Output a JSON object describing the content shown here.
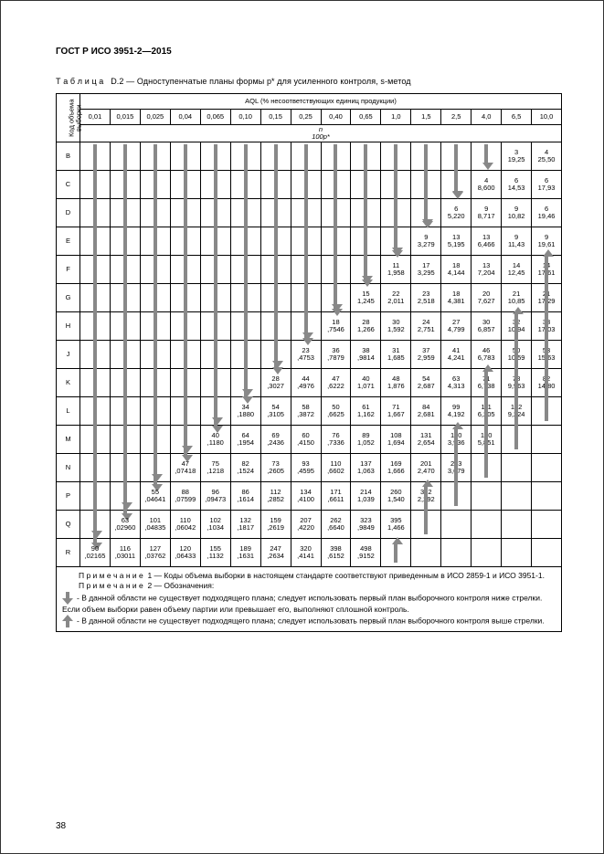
{
  "doc": {
    "standard": "ГОСТ Р ИСО 3951-2—2015",
    "caption_prefix": "Т а б л и ц а   D.2 — ",
    "caption": "Одноступенчатые планы формы p* для усиленного контроля, s-метод",
    "page_number": "38"
  },
  "table": {
    "rowhead_label": "Код объема\nвыборки",
    "aql_header": "AQL (% несоответствующих единиц продукции)",
    "p_header": "n\n100p*",
    "aql_cols": [
      "0,01",
      "0,015",
      "0,025",
      "0,04",
      "0,065",
      "0,10",
      "0,15",
      "0,25",
      "0,40",
      "0,65",
      "1,0",
      "1,5",
      "2,5",
      "4,0",
      "6,5",
      "10,0"
    ],
    "rows": [
      {
        "code": "B",
        "cells": [
          {
            "arrow": "down",
            "span": 14
          },
          {
            "arrow": "down",
            "span": 13
          },
          {
            "arrow": "down",
            "span": 12
          },
          {
            "arrow": "down",
            "span": 11
          },
          {
            "arrow": "down",
            "span": 10
          },
          {
            "arrow": "down",
            "span": 9
          },
          {
            "arrow": "down",
            "span": 8
          },
          {
            "arrow": "down",
            "span": 7
          },
          {
            "arrow": "down",
            "span": 6
          },
          {
            "arrow": "down",
            "span": 5
          },
          {
            "arrow": "down",
            "span": 4
          },
          {
            "arrow": "down",
            "span": 3
          },
          {
            "arrow": "down",
            "span": 2
          },
          {
            "arrow": "down",
            "span": 1
          },
          {
            "top": "3",
            "bot": "19,25"
          },
          {
            "top": "4",
            "bot": "25,50"
          }
        ]
      },
      {
        "code": "C",
        "cells": [
          {},
          {},
          {},
          {},
          {},
          {},
          {},
          {},
          {},
          {},
          {},
          {},
          {
            "arrow": "down",
            "span": 1
          },
          {
            "top": "4",
            "bot": "8,600"
          },
          {
            "top": "6",
            "bot": "14,53"
          },
          {
            "top": "6",
            "bot": "17,93"
          }
        ]
      },
      {
        "code": "D",
        "cells": [
          {},
          {},
          {},
          {},
          {},
          {},
          {},
          {},
          {},
          {},
          {},
          {
            "arrow": "down",
            "span": 1
          },
          {
            "top": "6",
            "bot": "5,220"
          },
          {
            "top": "9",
            "bot": "8,717"
          },
          {
            "top": "9",
            "bot": "10,82"
          },
          {
            "top": "6",
            "bot": "19,46"
          }
        ]
      },
      {
        "code": "E",
        "cells": [
          {},
          {},
          {},
          {},
          {},
          {},
          {},
          {},
          {},
          {},
          {
            "arrow": "down",
            "span": 1
          },
          {
            "top": "9",
            "bot": "3,279"
          },
          {
            "top": "13",
            "bot": "5,195"
          },
          {
            "top": "13",
            "bot": "6,466"
          },
          {
            "top": "9",
            "bot": "11,43"
          },
          {
            "top": "9",
            "bot": "19,61"
          }
        ]
      },
      {
        "code": "F",
        "cells": [
          {},
          {},
          {},
          {},
          {},
          {},
          {},
          {},
          {},
          {
            "arrow": "down",
            "span": 1
          },
          {
            "top": "11",
            "bot": "1,958"
          },
          {
            "top": "17",
            "bot": "3,295"
          },
          {
            "top": "18",
            "bot": "4,144"
          },
          {
            "top": "13",
            "bot": "7,204"
          },
          {
            "top": "14",
            "bot": "12,45"
          },
          {
            "top": "14",
            "bot": "17,61"
          }
        ]
      },
      {
        "code": "G",
        "cells": [
          {},
          {},
          {},
          {},
          {},
          {},
          {},
          {},
          {
            "arrow": "down",
            "span": 1
          },
          {
            "top": "15",
            "bot": "1,245"
          },
          {
            "top": "22",
            "bot": "2,011"
          },
          {
            "top": "23",
            "bot": "2,518"
          },
          {
            "top": "18",
            "bot": "4,381"
          },
          {
            "top": "20",
            "bot": "7,627"
          },
          {
            "top": "21",
            "bot": "10,85"
          },
          {
            "top": "21",
            "bot": "17,29"
          }
        ]
      },
      {
        "code": "H",
        "cells": [
          {},
          {},
          {},
          {},
          {},
          {},
          {},
          {
            "arrow": "down",
            "span": 1
          },
          {
            "top": "18",
            "bot": ",7546"
          },
          {
            "top": "28",
            "bot": "1,266"
          },
          {
            "top": "30",
            "bot": "1,592"
          },
          {
            "top": "24",
            "bot": "2,751"
          },
          {
            "top": "27",
            "bot": "4,799"
          },
          {
            "top": "30",
            "bot": "6,857"
          },
          {
            "top": "32",
            "bot": "10,94"
          },
          {
            "top": "33",
            "bot": "17,03"
          }
        ]
      },
      {
        "code": "J",
        "cells": [
          {},
          {},
          {},
          {},
          {},
          {},
          {
            "arrow": "down",
            "span": 1
          },
          {
            "top": "23",
            "bot": ",4753"
          },
          {
            "top": "36",
            "bot": ",7879"
          },
          {
            "top": "38",
            "bot": ",9814"
          },
          {
            "top": "31",
            "bot": "1,685"
          },
          {
            "top": "37",
            "bot": "2,959"
          },
          {
            "top": "41",
            "bot": "4,241"
          },
          {
            "top": "46",
            "bot": "6,783"
          },
          {
            "top": "50",
            "bot": "10,59"
          },
          {
            "top": "53",
            "bot": "15,63"
          }
        ]
      },
      {
        "code": "K",
        "cells": [
          {},
          {},
          {},
          {},
          {},
          {
            "arrow": "down",
            "span": 1
          },
          {
            "top": "28",
            "bot": ",3027"
          },
          {
            "top": "44",
            "bot": ",4976"
          },
          {
            "top": "47",
            "bot": ",6222"
          },
          {
            "top": "40",
            "bot": "1,071"
          },
          {
            "top": "48",
            "bot": "1,876"
          },
          {
            "top": "54",
            "bot": "2,687"
          },
          {
            "top": "63",
            "bot": "4,313"
          },
          {
            "top": "71",
            "bot": "6,738"
          },
          {
            "top": "78",
            "bot": "9,963"
          },
          {
            "top": "82",
            "bot": "14,80"
          }
        ]
      },
      {
        "code": "L",
        "cells": [
          {},
          {},
          {},
          {},
          {
            "arrow": "down",
            "span": 1
          },
          {
            "top": "34",
            "bot": ",1880"
          },
          {
            "top": "54",
            "bot": ",3105"
          },
          {
            "top": "58",
            "bot": ",3872"
          },
          {
            "top": "50",
            "bot": ",6625"
          },
          {
            "top": "61",
            "bot": "1,162"
          },
          {
            "top": "71",
            "bot": "1,667"
          },
          {
            "top": "84",
            "bot": "2,681"
          },
          {
            "top": "99",
            "bot": "4,192"
          },
          {
            "top": "111",
            "bot": "6,205"
          },
          {
            "top": "122",
            "bot": "9,224"
          },
          {
            "arrow": "up",
            "span": 6
          }
        ]
      },
      {
        "code": "M",
        "cells": [
          {},
          {},
          {},
          {
            "arrow": "down",
            "span": 1
          },
          {
            "top": "40",
            "bot": ",1180"
          },
          {
            "top": "64",
            "bot": ",1954"
          },
          {
            "top": "69",
            "bot": ",2436"
          },
          {
            "top": "60",
            "bot": ",4150"
          },
          {
            "top": "76",
            "bot": ",7336"
          },
          {
            "top": "89",
            "bot": "1,052"
          },
          {
            "top": "108",
            "bot": "1,694"
          },
          {
            "top": "131",
            "bot": "2,654"
          },
          {
            "top": "150",
            "bot": "3,936"
          },
          {
            "top": "170",
            "bot": "5,851"
          },
          {
            "arrow": "up",
            "span": 5
          },
          {}
        ]
      },
      {
        "code": "N",
        "cells": [
          {},
          {},
          {
            "arrow": "down",
            "span": 1
          },
          {
            "top": "47",
            "bot": ",07418"
          },
          {
            "top": "75",
            "bot": ",1218"
          },
          {
            "top": "82",
            "bot": ",1524"
          },
          {
            "top": "73",
            "bot": ",2605"
          },
          {
            "top": "93",
            "bot": ",4595"
          },
          {
            "top": "110",
            "bot": ",6602"
          },
          {
            "top": "137",
            "bot": "1,063"
          },
          {
            "top": "169",
            "bot": "1,666"
          },
          {
            "top": "201",
            "bot": "2,470"
          },
          {
            "top": "233",
            "bot": "3,679"
          },
          {
            "arrow": "up",
            "span": 4
          },
          {},
          {}
        ]
      },
      {
        "code": "P",
        "cells": [
          {},
          {
            "arrow": "down",
            "span": 1
          },
          {
            "top": "55",
            "bot": ",04641"
          },
          {
            "top": "88",
            "bot": ",07599"
          },
          {
            "top": "96",
            "bot": ",09473"
          },
          {
            "top": "86",
            "bot": ",1614"
          },
          {
            "top": "112",
            "bot": ",2852"
          },
          {
            "top": "134",
            "bot": ",4100"
          },
          {
            "top": "171",
            "bot": ",6611"
          },
          {
            "top": "214",
            "bot": "1,039"
          },
          {
            "top": "260",
            "bot": "1,540"
          },
          {
            "top": "312",
            "bot": "2,292"
          },
          {
            "arrow": "up",
            "span": 3
          },
          {},
          {},
          {}
        ]
      },
      {
        "code": "Q",
        "cells": [
          {
            "arrow": "down",
            "span": 1
          },
          {
            "top": "63",
            "bot": ",02960"
          },
          {
            "top": "101",
            "bot": ",04835"
          },
          {
            "top": "110",
            "bot": ",06042"
          },
          {
            "top": "102",
            "bot": ",1034"
          },
          {
            "top": "132",
            "bot": ",1817"
          },
          {
            "top": "159",
            "bot": ",2619"
          },
          {
            "top": "207",
            "bot": ",4220"
          },
          {
            "top": "262",
            "bot": ",6640"
          },
          {
            "top": "323",
            "bot": ",9849"
          },
          {
            "top": "395",
            "bot": "1,466"
          },
          {
            "arrow": "up",
            "span": 2
          },
          {},
          {},
          {},
          {}
        ]
      },
      {
        "code": "R",
        "cells": [
          {
            "top": "90",
            "bot": ",02165"
          },
          {
            "top": "116",
            "bot": ",03011"
          },
          {
            "top": "127",
            "bot": ",03762"
          },
          {
            "top": "120",
            "bot": ",06433"
          },
          {
            "top": "155",
            "bot": ",1132"
          },
          {
            "top": "189",
            "bot": ",1631"
          },
          {
            "top": "247",
            "bot": ",2634"
          },
          {
            "top": "320",
            "bot": ",4141"
          },
          {
            "top": "398",
            "bot": ",6152"
          },
          {
            "top": "498",
            "bot": ",9152"
          },
          {
            "arrow": "up",
            "span": 1
          },
          {},
          {},
          {},
          {},
          {}
        ]
      }
    ]
  },
  "notes": {
    "n1": "П р и м е ч а н и е  1 — Коды объема выборки в настоящем стандарте соответствуют приведенным в ИСО 2859-1 и ИСО 3951-1.",
    "n2_title": "П р и м е ч а н и е  2 — Обозначения:",
    "n2_down": "- В данной области не существует подходящего плана; следует использовать первый план выборочного контроля ниже стрелки. Если объем выборки равен объему партии или превышает его, выполняют сплошной контроль.",
    "n2_up": "- В данной области не существует подходящего плана; следует использовать первый план выборочного контроля выше стрелки."
  },
  "colors": {
    "arrow": "#888888",
    "border": "#000000",
    "text": "#000000",
    "bg": "#ffffff"
  }
}
